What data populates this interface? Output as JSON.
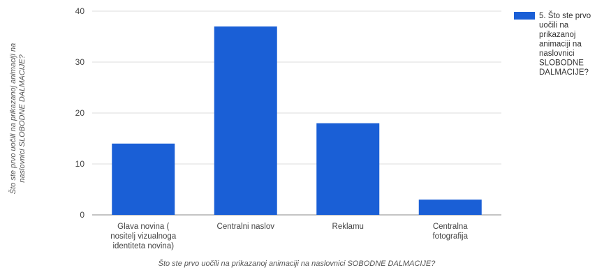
{
  "chart_data": {
    "type": "bar",
    "categories": [
      [
        "Glava novina (",
        "nositelj vizualnoga",
        "identiteta novina)"
      ],
      [
        "Centralni naslov"
      ],
      [
        "Reklamu"
      ],
      [
        "Centralna",
        "fotografija"
      ]
    ],
    "series": [
      {
        "name": [
          "5. Što ste prvo",
          "uočili na",
          "prikazanoj",
          "animaciji na",
          "naslovnici",
          "SLOBODNE",
          "DALMACIJE?"
        ],
        "values": [
          14,
          37,
          18,
          3
        ]
      }
    ],
    "y_ticks": [
      "0",
      "10",
      "20",
      "30",
      "40"
    ],
    "ylim": [
      0,
      40
    ],
    "xlabel": "Što ste prvo uočili na prikazanoj animaciji na naslovnici SOBODNE DALMACIJE?",
    "ylabel": [
      "Što ste prvo uočili na prikazanoj animaciji na",
      "naslovnici SLOBODNE DALMACIJE?"
    ],
    "grid": true,
    "legend_position": "right",
    "colors": {
      "bar": "#1a5fd6",
      "grid": "#dcdcdc",
      "baseline": "#888888"
    }
  }
}
